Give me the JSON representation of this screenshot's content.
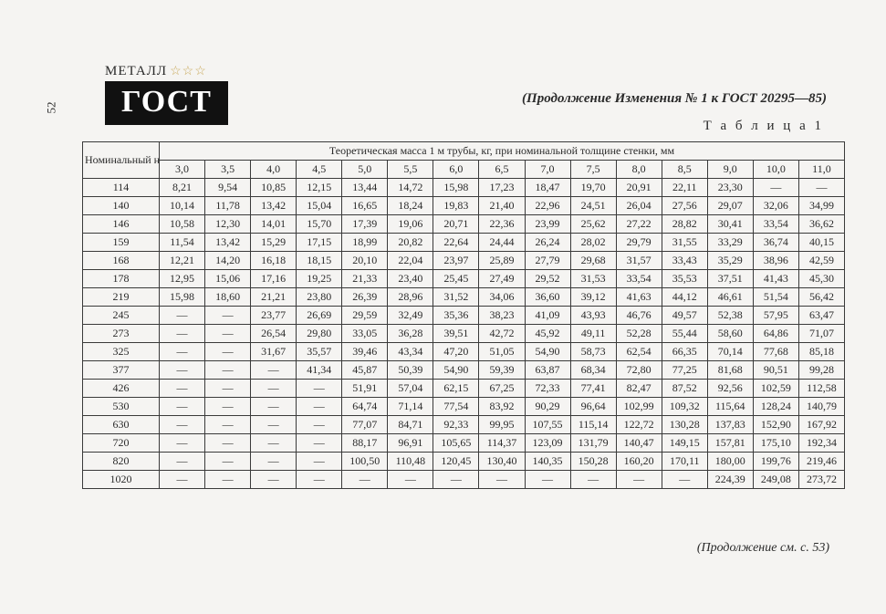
{
  "page_number": "52",
  "logo": {
    "top": "МЕТАЛЛ",
    "stars": "☆☆☆",
    "main": "ГОСТ"
  },
  "header_right": "(Продолжение Изменения № 1 к ГОСТ 20295—85)",
  "table_label": "Т а б л и ц а 1",
  "row_header_label": "Номинальный наружный диаметр труб, мм",
  "super_header": "Теоретическая масса 1 м трубы, кг, при номинальной толщине стенки, мм",
  "col_headers": [
    "3,0",
    "3,5",
    "4,0",
    "4,5",
    "5,0",
    "5,5",
    "6,0",
    "6,5",
    "7,0",
    "7,5",
    "8,0",
    "8,5",
    "9,0",
    "10,0",
    "11,0"
  ],
  "rows": [
    {
      "d": "114",
      "v": [
        "8,21",
        "9,54",
        "10,85",
        "12,15",
        "13,44",
        "14,72",
        "15,98",
        "17,23",
        "18,47",
        "19,70",
        "20,91",
        "22,11",
        "23,30",
        "—",
        "—"
      ]
    },
    {
      "d": "140",
      "v": [
        "10,14",
        "11,78",
        "13,42",
        "15,04",
        "16,65",
        "18,24",
        "19,83",
        "21,40",
        "22,96",
        "24,51",
        "26,04",
        "27,56",
        "29,07",
        "32,06",
        "34,99"
      ]
    },
    {
      "d": "146",
      "v": [
        "10,58",
        "12,30",
        "14,01",
        "15,70",
        "17,39",
        "19,06",
        "20,71",
        "22,36",
        "23,99",
        "25,62",
        "27,22",
        "28,82",
        "30,41",
        "33,54",
        "36,62"
      ]
    },
    {
      "d": "159",
      "v": [
        "11,54",
        "13,42",
        "15,29",
        "17,15",
        "18,99",
        "20,82",
        "22,64",
        "24,44",
        "26,24",
        "28,02",
        "29,79",
        "31,55",
        "33,29",
        "36,74",
        "40,15"
      ]
    },
    {
      "d": "168",
      "v": [
        "12,21",
        "14,20",
        "16,18",
        "18,15",
        "20,10",
        "22,04",
        "23,97",
        "25,89",
        "27,79",
        "29,68",
        "31,57",
        "33,43",
        "35,29",
        "38,96",
        "42,59"
      ]
    },
    {
      "d": "178",
      "v": [
        "12,95",
        "15,06",
        "17,16",
        "19,25",
        "21,33",
        "23,40",
        "25,45",
        "27,49",
        "29,52",
        "31,53",
        "33,54",
        "35,53",
        "37,51",
        "41,43",
        "45,30"
      ]
    },
    {
      "d": "219",
      "v": [
        "15,98",
        "18,60",
        "21,21",
        "23,80",
        "26,39",
        "28,96",
        "31,52",
        "34,06",
        "36,60",
        "39,12",
        "41,63",
        "44,12",
        "46,61",
        "51,54",
        "56,42"
      ]
    },
    {
      "d": "245",
      "v": [
        "—",
        "—",
        "23,77",
        "26,69",
        "29,59",
        "32,49",
        "35,36",
        "38,23",
        "41,09",
        "43,93",
        "46,76",
        "49,57",
        "52,38",
        "57,95",
        "63,47"
      ]
    },
    {
      "d": "273",
      "v": [
        "—",
        "—",
        "26,54",
        "29,80",
        "33,05",
        "36,28",
        "39,51",
        "42,72",
        "45,92",
        "49,11",
        "52,28",
        "55,44",
        "58,60",
        "64,86",
        "71,07"
      ]
    },
    {
      "d": "325",
      "v": [
        "—",
        "—",
        "31,67",
        "35,57",
        "39,46",
        "43,34",
        "47,20",
        "51,05",
        "54,90",
        "58,73",
        "62,54",
        "66,35",
        "70,14",
        "77,68",
        "85,18"
      ]
    },
    {
      "d": "377",
      "v": [
        "—",
        "—",
        "—",
        "41,34",
        "45,87",
        "50,39",
        "54,90",
        "59,39",
        "63,87",
        "68,34",
        "72,80",
        "77,25",
        "81,68",
        "90,51",
        "99,28"
      ]
    },
    {
      "d": "426",
      "v": [
        "—",
        "—",
        "—",
        "—",
        "51,91",
        "57,04",
        "62,15",
        "67,25",
        "72,33",
        "77,41",
        "82,47",
        "87,52",
        "92,56",
        "102,59",
        "112,58"
      ]
    },
    {
      "d": "530",
      "v": [
        "—",
        "—",
        "—",
        "—",
        "64,74",
        "71,14",
        "77,54",
        "83,92",
        "90,29",
        "96,64",
        "102,99",
        "109,32",
        "115,64",
        "128,24",
        "140,79"
      ]
    },
    {
      "d": "630",
      "v": [
        "—",
        "—",
        "—",
        "—",
        "77,07",
        "84,71",
        "92,33",
        "99,95",
        "107,55",
        "115,14",
        "122,72",
        "130,28",
        "137,83",
        "152,90",
        "167,92"
      ]
    },
    {
      "d": "720",
      "v": [
        "—",
        "—",
        "—",
        "—",
        "88,17",
        "96,91",
        "105,65",
        "114,37",
        "123,09",
        "131,79",
        "140,47",
        "149,15",
        "157,81",
        "175,10",
        "192,34"
      ]
    },
    {
      "d": "820",
      "v": [
        "—",
        "—",
        "—",
        "—",
        "100,50",
        "110,48",
        "120,45",
        "130,40",
        "140,35",
        "150,28",
        "160,20",
        "170,11",
        "180,00",
        "199,76",
        "219,46"
      ]
    },
    {
      "d": "1020",
      "v": [
        "—",
        "—",
        "—",
        "—",
        "—",
        "—",
        "—",
        "—",
        "—",
        "—",
        "—",
        "—",
        "224,39",
        "249,08",
        "273,72"
      ]
    }
  ],
  "footer_cont": "(Продолжение см. с. 53)",
  "style": {
    "bg": "#f5f4f2",
    "text": "#2a2a2a",
    "border": "#3a3a3a",
    "logo_bg": "#111111",
    "logo_fg": "#ffffff",
    "star_color": "#c9a95a",
    "base_fontsize_pt": 12,
    "header_fontsize_pt": 15
  }
}
